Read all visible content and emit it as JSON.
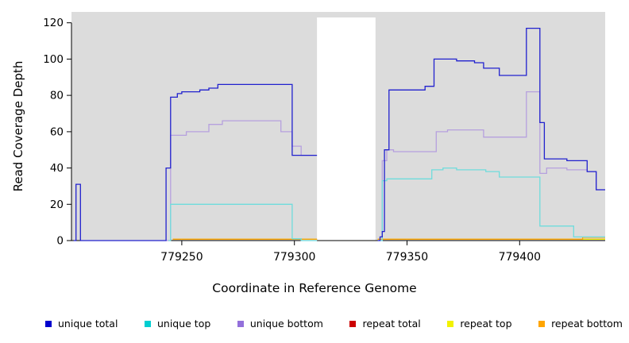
{
  "figure": {
    "background": "#ffffff"
  },
  "chart_data": {
    "type": "line",
    "style": "step",
    "title": "",
    "xlabel": "Coordinate in Reference Genome",
    "ylabel": "Read Coverage Depth",
    "xlim": [
      779201,
      779438
    ],
    "ylim": [
      0,
      126
    ],
    "xticks": [
      779250,
      779300,
      779350,
      779400
    ],
    "yticks": [
      0,
      20,
      40,
      60,
      80,
      100,
      120
    ],
    "panel_color": "#dcdcdc",
    "gap_region": [
      779310,
      779336
    ],
    "grid": "off",
    "legend_position": "bottom",
    "series": [
      {
        "name": "unique total",
        "line_color": "#2121CE",
        "legend_color": "#0000CD",
        "segments": [
          {
            "end": 779310,
            "points": [
              [
                779202,
                0
              ],
              [
                779203,
                31
              ],
              [
                779205,
                0
              ],
              [
                779243,
                40
              ],
              [
                779245,
                79
              ],
              [
                779248,
                81
              ],
              [
                779250,
                82
              ],
              [
                779258,
                83
              ],
              [
                779262,
                84
              ],
              [
                779266,
                86
              ],
              [
                779299,
                47
              ]
            ]
          },
          {
            "end": 779438,
            "points": [
              [
                779337,
                0
              ],
              [
                779338,
                2
              ],
              [
                779339,
                5
              ],
              [
                779340,
                50
              ],
              [
                779342,
                83
              ],
              [
                779358,
                85
              ],
              [
                779362,
                100
              ],
              [
                779372,
                99
              ],
              [
                779380,
                98
              ],
              [
                779384,
                95
              ],
              [
                779391,
                91
              ],
              [
                779403,
                117
              ],
              [
                779409,
                65
              ],
              [
                779411,
                45
              ],
              [
                779421,
                44
              ],
              [
                779430,
                38
              ],
              [
                779434,
                28
              ]
            ]
          }
        ]
      },
      {
        "name": "unique top",
        "line_color": "#6FDCDC",
        "legend_color": "#00CED1",
        "segments": [
          {
            "end": 779310,
            "points": [
              [
                779244,
                0
              ],
              [
                779245,
                20
              ],
              [
                779299,
                1
              ],
              [
                779303,
                0
              ]
            ]
          },
          {
            "end": 779438,
            "points": [
              [
                779338,
                0
              ],
              [
                779339,
                33
              ],
              [
                779341,
                34
              ],
              [
                779361,
                39
              ],
              [
                779366,
                40
              ],
              [
                779372,
                39
              ],
              [
                779385,
                38
              ],
              [
                779391,
                35
              ],
              [
                779409,
                8
              ],
              [
                779424,
                2
              ]
            ]
          }
        ]
      },
      {
        "name": "unique bottom",
        "line_color": "#B6A0DE",
        "legend_color": "#9370DB",
        "segments": [
          {
            "end": 779310,
            "points": [
              [
                779243,
                0
              ],
              [
                779245,
                58
              ],
              [
                779252,
                60
              ],
              [
                779262,
                64
              ],
              [
                779268,
                66
              ],
              [
                779294,
                60
              ],
              [
                779299,
                52
              ],
              [
                779303,
                47
              ]
            ]
          },
          {
            "end": 779438,
            "points": [
              [
                779338,
                0
              ],
              [
                779339,
                44
              ],
              [
                779341,
                50
              ],
              [
                779344,
                49
              ],
              [
                779363,
                60
              ],
              [
                779368,
                61
              ],
              [
                779384,
                57
              ],
              [
                779403,
                82
              ],
              [
                779409,
                37
              ],
              [
                779412,
                40
              ],
              [
                779421,
                39
              ],
              [
                779430,
                38
              ],
              [
                779434,
                28
              ]
            ]
          }
        ]
      },
      {
        "name": "repeat total",
        "line_color": "#CC0000",
        "legend_color": "#CC0000",
        "segments": [
          {
            "end": 779310,
            "points": [
              [
                779246,
                0.7
              ]
            ]
          },
          {
            "end": 779438,
            "points": [
              [
                779337,
                0.7
              ]
            ]
          }
        ]
      },
      {
        "name": "repeat top",
        "line_color": "#F2F200",
        "legend_color": "#F2F200",
        "segments": [
          {
            "end": 779310,
            "points": [
              [
                779246,
                0.7
              ]
            ]
          },
          {
            "end": 779438,
            "points": [
              [
                779337,
                0.7
              ]
            ]
          }
        ]
      },
      {
        "name": "repeat bottom",
        "line_color": "#FFA500",
        "legend_color": "#FFA500",
        "segments": [
          {
            "end": 779310,
            "points": [
              [
                779246,
                0.7
              ]
            ]
          },
          {
            "end": 779438,
            "points": [
              [
                779337,
                0.7
              ],
              [
                779428,
                1.8
              ]
            ]
          }
        ]
      }
    ]
  }
}
